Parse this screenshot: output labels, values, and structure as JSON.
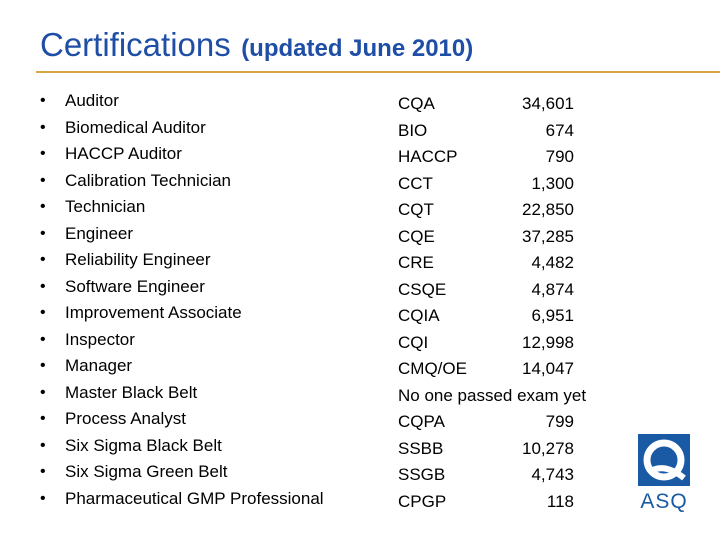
{
  "slide": {
    "title": "Certifications",
    "subtitle": "(updated June 2010)",
    "colors": {
      "title": "#1f4ea6",
      "rule": "#d5a642",
      "logo": "#1a5aa5"
    }
  },
  "certifications": [
    "Auditor",
    "Biomedical Auditor",
    "HACCP Auditor",
    "Calibration Technician",
    "Technician",
    "Engineer",
    "Reliability Engineer",
    "Software Engineer",
    "Improvement Associate",
    "Inspector",
    "Manager",
    "Master Black Belt",
    "Process Analyst",
    "Six Sigma Black Belt",
    "Six Sigma Green Belt",
    "Pharmaceutical GMP Professional"
  ],
  "bullet": "•",
  "counts": [
    {
      "code": "CQA",
      "count": "34,601"
    },
    {
      "code": "BIO",
      "count": "674"
    },
    {
      "code": "HACCP",
      "count": "790"
    },
    {
      "code": "CCT",
      "count": "1,300"
    },
    {
      "code": "CQT",
      "count": "22,850"
    },
    {
      "code": "CQE",
      "count": "37,285"
    },
    {
      "code": "CRE",
      "count": "4,482"
    },
    {
      "code": "CSQE",
      "count": "4,874"
    },
    {
      "code": "CQIA",
      "count": "6,951"
    },
    {
      "code": "CQI",
      "count": "12,998"
    },
    {
      "code": "CMQ/OE",
      "count": "14,047"
    },
    {
      "note": "No one passed exam yet"
    },
    {
      "code": "CQPA",
      "count": "799"
    },
    {
      "code": "SSBB",
      "count": "10,278"
    },
    {
      "code": "SSGB",
      "count": "4,743"
    },
    {
      "code": "CPGP",
      "count": "118"
    }
  ],
  "logo": {
    "icon": "asq-q-logo-icon",
    "text": "ASQ"
  }
}
